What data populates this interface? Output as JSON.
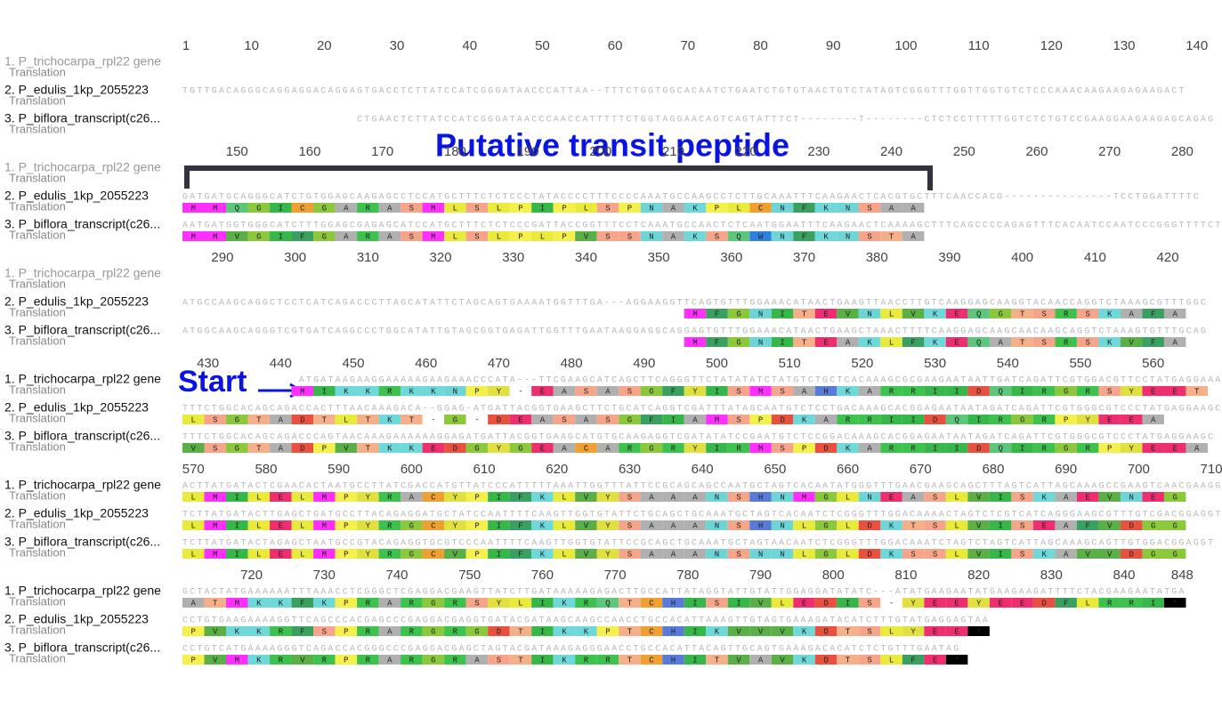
{
  "annotations": {
    "transit_peptide": "Putative transit peptide",
    "start": "Start"
  },
  "translation_label": "Translation",
  "names": [
    "1. P_trichocarpa_rpl22 gene",
    "2. P_edulis_1kp_2055223",
    "3. P_biflora_transcript(c26..."
  ],
  "blocks": [
    {
      "ruler": [
        1,
        10,
        20,
        30,
        40,
        50,
        60,
        70,
        80,
        90,
        100,
        110,
        120,
        130,
        140
      ],
      "rows": [
        {
          "seq": null,
          "aa": null
        },
        {
          "seq": "TGTTGACAGGGCAGGAGGACAGGAGTGACCTCTTATCCATCGGGATAACCCATTAA--TTTCTGGTGGCACAATCTGAATCTGTGTAACTGTCTATAGTCGGGTTTGGTTGGTGTCTCCCAAACAAGAAGAGAAGACT",
          "aa": null
        },
        {
          "seq": "                        CTGAACTCTTATCCATCGGGATAACCCAACCATTTTTCTGGTAGGAACAGTCAGTATTTCT--------T--------CTCTCCTTTTTGGTCTCTGTCCGAAGGAAGAAGAGCAGAG",
          "aa": null
        }
      ]
    },
    {
      "ruler": [
        150,
        160,
        170,
        180,
        190,
        200,
        210,
        220,
        230,
        240,
        250,
        260,
        270,
        280
      ],
      "rows": [
        {
          "seq": null,
          "aa": null
        },
        {
          "seq": "GATGATGCAGGGCATCTGTGGAGCAAGAGCCTCCATGCTTTCTCTCCCTATACCCCTTTCCCCAAATGCCAAGCCTCTTGCAAATTTCAAGAACTCACGTGCTTTCAACCACG---------------TCCTGGATTTTC",
          "aa": "MMQGICGARASMLSLPIPLSPNAKPLCNFKNSAA"
        },
        {
          "seq": "AATGATGGTGGGCATCTTTGGAGCGAGAGCATCCATGCTTTCTCTCCCGATTACCGGTTTCCTCAAATGCCAACTCTCAATGGAATTTCAAGAACTCAAAAGCTTTCAGCCCCAGAGTTTCACAATCCAATCCCGGGTTTTCT",
          "aa": "MMVGIFGARASMLSLPLPVSSNAKSQWNFKNSTA"
        }
      ]
    },
    {
      "ruler": [
        290,
        300,
        310,
        320,
        330,
        340,
        350,
        360,
        370,
        380,
        390,
        400,
        410,
        420
      ],
      "rows": [
        {
          "seq": null,
          "aa": null
        },
        {
          "seq": "ATGCCAAGCAGGCTCCTCATCAGACCCTTAGCATATTCTAGCAGTGAAAATGGTTTGA---AGGAAGGTTCAGTGTTTGGAAACATAACTGAAGTTAACCTTGTCAAGGAGCAAGGTACAACCAGGTCTAAAGCGTTTGGC",
          "aa": "                       MFGNITEVNLVKEQGTSRSKAFA"
        },
        {
          "seq": "ATGGCAAGCAGGGTCGTGATCAGGCCCTGGCATATTGTAGCGGTGAGATTGGTTTGAATAAGGAGGCAGGAGTGTTTGGAAACATAACTGAAGCTAAACTTTTCAAGGAGCAAGCAACAAGCAGGTCTAAAGTGTTTGCAG",
          "aa": "                       MFGNITEAKLFKEQATSRSKVFA"
        }
      ]
    },
    {
      "ruler": [
        430,
        440,
        450,
        460,
        470,
        480,
        490,
        500,
        510,
        520,
        530,
        540,
        550,
        560
      ],
      "rows": [
        {
          "seq": "                ATGATAAGAAGGAAAAAGAAGAAACCCATA---TTCGAAGCATCAGCTTCAGGGTTCTATATATCTATGTCTGCTCACAAAGCGCGAAGAATAATTGATCAGATTCGTGGACGTTCCTATGAGGAAAC",
          "aa": "     MIKKRKKNPY-EASASGFYISMSAHKARRIIDQIRGRSYEET"
        },
        {
          "seq": "TTTCTGGCACAGCAGACCACTTTAACAAAGACA--GGAG-ATGATTACGGTGAAGCTTCTGCATCAGGTCGATTTATAGCAATGTCTCCTGACAAAGCACGGAGAATAATAGATCAGATTCGTGGGCGTCCCTATGAGGAAGC",
          "aa": "LSGTADTLTKT-G-DEASASGFIAMSPDKARRIIDQIRGRPYEEA"
        },
        {
          "seq": "TTTCTGGCACAGCAGACCCAGTAACAAAGAAAAAAGGAGATGATTACGGTGAAGCATGTGCAAGAGGTCGATATATCCGAATGTCTCCGGACAAAGCACGGAGAATAATAGATCAGATTCGTGGGCGTCCCTATGAGGAAGC",
          "aa": "VSGTADPVTKKEDGYGEACARGRYIRMSPDKARRIIDQIRGRPYEEA"
        }
      ]
    },
    {
      "ruler": [
        570,
        580,
        590,
        600,
        610,
        620,
        630,
        640,
        650,
        660,
        670,
        680,
        690,
        700,
        710
      ],
      "rows": [
        {
          "seq": "ACTTATGATACTCGAACACTAATGCCTTATCGACCATGTTATCCCATTTTTAAATTGGTTTATTCCGCAGCAGCCAATGCTAGTCACAATATGGGTTTGAACGAAGCAGCTTTAGTCATTAGCAAAGCCGAAGTCAACGAAGGT",
          "aa": "LMILELMPYRACYPIFKLVYSAAANSHNMGLNEASLVISKAEVNEG"
        },
        {
          "seq": "TCTTATGATACTTGAGCTGATGCCTTACAGAGGATGCTATCCAATTTTCAAGTTGGTGTATTCTGCAGCTGCAAATGCTAGTCACAATCTCGGGTTTGGACAAAACTAGTCTCGTCATCAGGGAAGCGTTTGTCGACGGAGGT",
          "aa": "LMILELMPYRGCYPIFKLVYSAAANSHNLGLDKTSLVISEAFVDGG"
        },
        {
          "seq": "TCTTATGATACTAGAGCTAATGCCGTACAGAGGTGCGTCCCAATTTTCAAGTTGGTGTATTCCGCAGCTGCAAATGCTAGTAACAATCTCGGGTTTGGACAAATCTAGTCTAGTCATTAGCAAAGCAGTTGTGGACGGAGGT",
          "aa": "LMILELMPYRGCVPIFKLVYSAAANSNNLGLDKSSLVISKAVVDGG"
        }
      ]
    },
    {
      "ruler": [
        720,
        730,
        740,
        750,
        760,
        770,
        780,
        790,
        800,
        810,
        820,
        830,
        840,
        848
      ],
      "rows": [
        {
          "seq": "GCTACTATGAAAAAATTTAAACCTCGGGCTCGAGGACGAAGTTATCTTGATAAAAAGAGACTTGCCATTATAGGTATTGTATTGGAGGATATATC---ATATGAAGAATATGAAGAAGATTTTCTACGAAGAATATGA",
          "aa": "ATMKKFKPRARGRSYLIKRQTCHISIVLEDIS-YEEYEEDFLRRI*"
        },
        {
          "seq": "CCTGTGAAGAAAAGGTTCAGCCCACGAGCCCGAGGACGAGGTGATACGATAAGCAAGCCAACCTGCCACATTAAAGTTGTAGTGAAAGATACATCTTTGTATGAGGAGTAA",
          "aa": "PVKKRFSPRARGRGDTIKKPTCHIKVVVKDTSLYEE*"
        },
        {
          "seq": "CCTGTCATGAAAAGGGTCAGACCACGGGCCCGAGGACGAGCTAGTACGATAAAGAGGGAACCTGCCACATTACAGTTGCAGTGAAAGACACATCTCTGTTTGAATAG",
          "aa": "PVMKRVRPRARGRASTIKRRTCHITVAVKDTSLFE*"
        }
      ]
    }
  ]
}
